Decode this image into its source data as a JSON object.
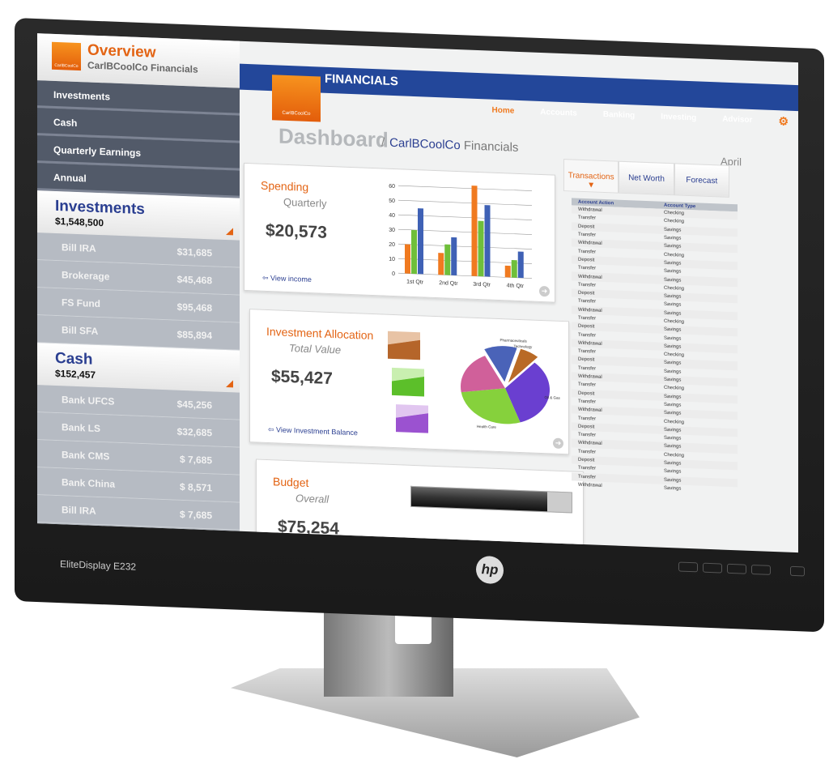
{
  "device": {
    "model_label": "EliteDisplay E232",
    "brand": "hp"
  },
  "sidebar": {
    "logo_text": "CarlBCoolCo",
    "title": "Overview",
    "subtitle": "CarlBCoolCo Financials",
    "nav": [
      {
        "label": "Investments"
      },
      {
        "label": "Cash"
      },
      {
        "label": "Quarterly Earnings"
      },
      {
        "label": "Annual"
      }
    ],
    "sections": [
      {
        "title": "Investments",
        "total": "$1,548,500",
        "accounts": [
          {
            "name": "Bill IRA",
            "amount": "$31,685"
          },
          {
            "name": "Brokerage",
            "amount": "$45,468"
          },
          {
            "name": "FS Fund",
            "amount": "$95,468"
          },
          {
            "name": "Bill SFA",
            "amount": "$85,894"
          }
        ]
      },
      {
        "title": "Cash",
        "total": "$152,457",
        "accounts": [
          {
            "name": "Bank UFCS",
            "amount": "$45,256"
          },
          {
            "name": "Bank LS",
            "amount": "$32,685"
          },
          {
            "name": "Bank CMS",
            "amount": "$ 7,685"
          },
          {
            "name": "Bank China",
            "amount": "$ 8,571"
          },
          {
            "name": "Bill IRA",
            "amount": "$ 7,685"
          }
        ]
      }
    ]
  },
  "header": {
    "logo_text": "CarlBCoolCo",
    "app_title": "FINANCIALS",
    "nav": [
      {
        "label": "Home",
        "active": true
      },
      {
        "label": "Accounts"
      },
      {
        "label": "Banking"
      },
      {
        "label": "Investing"
      },
      {
        "label": "Advisor"
      }
    ],
    "settings_icon": "gear-icon"
  },
  "page": {
    "title": "Dashboard",
    "breadcrumb_sep": "/",
    "breadcrumb_brand": "CarlBCoolCo",
    "breadcrumb_rest": "Financials"
  },
  "spending": {
    "title": "Spending",
    "subtitle": "Quarterly",
    "value": "$20,573",
    "link": "View income"
  },
  "allocation": {
    "title": "Investment Allocation",
    "subtitle": "Total Value",
    "value": "$55,427",
    "link": "View Investment Balance"
  },
  "budget": {
    "title": "Budget",
    "subtitle": "Overall",
    "value": "$75,254",
    "fill_percent": 85
  },
  "colors": {
    "accent": "#e36414",
    "brand": "#23479a",
    "orange": "#f07a20",
    "green": "#6fbf3a",
    "blue": "#3f61b5"
  },
  "chart_data": [
    {
      "type": "bar",
      "categories": [
        "1st Qtr",
        "2nd Qtr",
        "3rd Qtr",
        "4th Qtr"
      ],
      "ylim": [
        0,
        60
      ],
      "yticks": [
        0,
        10,
        20,
        30,
        40,
        50,
        60
      ],
      "grid": true,
      "series": [
        {
          "values": [
            20,
            15,
            62,
            8
          ],
          "color": "#f07a20"
        },
        {
          "values": [
            30,
            21,
            38,
            12
          ],
          "color": "#6fbf3a"
        },
        {
          "values": [
            45,
            26,
            49,
            18
          ],
          "color": "#3f61b5"
        }
      ]
    },
    {
      "type": "pie",
      "labels": [
        "Pharmaceuticals",
        "Technology",
        "Oil & Gas",
        "Health Care",
        ""
      ],
      "values": [
        12,
        7,
        33,
        28,
        20
      ],
      "colors": [
        "#4a63b8",
        "#b96a26",
        "#6a3fd0",
        "#86d13c",
        "#d0609a"
      ]
    }
  ],
  "right": {
    "month": "April",
    "tabs": [
      {
        "label": "Transactions",
        "active": true
      },
      {
        "label": "Net Worth"
      },
      {
        "label": "Forecast"
      }
    ],
    "columns": [
      "Account Action",
      "Account Type"
    ],
    "rows": [
      [
        "Withdrawal",
        "Checking"
      ],
      [
        "Transfer",
        "Checking"
      ],
      [
        "Deposit",
        "Savings"
      ],
      [
        "Transfer",
        "Savings"
      ],
      [
        "Withdrawal",
        "Savings"
      ],
      [
        "Transfer",
        "Checking"
      ],
      [
        "Deposit",
        "Savings"
      ],
      [
        "Transfer",
        "Savings"
      ],
      [
        "Withdrawal",
        "Savings"
      ],
      [
        "Transfer",
        "Checking"
      ],
      [
        "Deposit",
        "Savings"
      ],
      [
        "Transfer",
        "Savings"
      ],
      [
        "Withdrawal",
        "Savings"
      ],
      [
        "Transfer",
        "Checking"
      ],
      [
        "Deposit",
        "Savings"
      ],
      [
        "Transfer",
        "Savings"
      ],
      [
        "Withdrawal",
        "Savings"
      ],
      [
        "Transfer",
        "Checking"
      ],
      [
        "Deposit",
        "Savings"
      ],
      [
        "Transfer",
        "Savings"
      ],
      [
        "Withdrawal",
        "Savings"
      ],
      [
        "Transfer",
        "Checking"
      ],
      [
        "Deposit",
        "Savings"
      ],
      [
        "Transfer",
        "Savings"
      ],
      [
        "Withdrawal",
        "Savings"
      ],
      [
        "Transfer",
        "Checking"
      ],
      [
        "Deposit",
        "Savings"
      ],
      [
        "Transfer",
        "Savings"
      ],
      [
        "Withdrawal",
        "Savings"
      ],
      [
        "Transfer",
        "Checking"
      ],
      [
        "Deposit",
        "Savings"
      ],
      [
        "Transfer",
        "Savings"
      ],
      [
        "Transfer",
        "Savings"
      ],
      [
        "Withdrawal",
        "Savings"
      ]
    ]
  }
}
